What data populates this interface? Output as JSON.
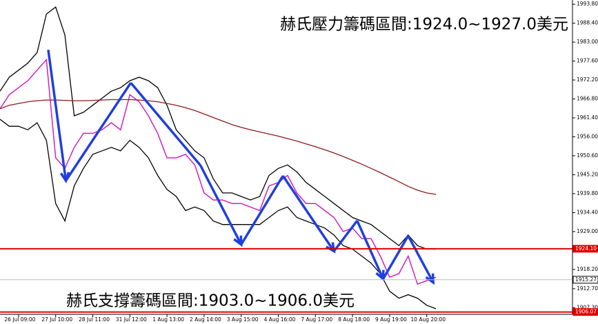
{
  "chart_data": {
    "type": "line",
    "categories": [
      null,
      null,
      "26 Jul 09:00",
      null,
      null,
      null,
      "27 Jul 10:00",
      null,
      null,
      null,
      "28 Jul 11:00",
      null,
      null,
      null,
      "31 Jul 12:00",
      null,
      null,
      null,
      "1 Aug 13:00",
      null,
      null,
      null,
      "2 Aug 14:00",
      null,
      null,
      null,
      "3 Aug 15:00",
      null,
      null,
      null,
      "4 Aug 16:00",
      null,
      null,
      null,
      "7 Aug 17:00",
      null,
      null,
      null,
      "8 Aug 18:00",
      null,
      null,
      null,
      "9 Aug 19:00",
      null,
      null,
      null,
      "10 Aug 20:00",
      null
    ],
    "series": [
      {
        "color": "#d020c0",
        "values": [
          1964,
          1968,
          1970,
          1972,
          1975,
          1978,
          1950,
          1947,
          1953,
          1957,
          1957,
          1958,
          1960,
          1958,
          1968,
          1966,
          1962,
          1957,
          1950,
          1950,
          1951,
          1948,
          1940,
          1938,
          1938,
          1937,
          1937,
          1936,
          1935,
          1942,
          1943,
          1945,
          1940,
          1937,
          1937,
          1935,
          1933,
          1929,
          1930,
          1927,
          1927,
          1922,
          1916,
          1917,
          1922,
          1914,
          1915,
          1916
        ]
      },
      {
        "color": "#000000",
        "values": [
          1969,
          1973,
          1975,
          1977,
          1980,
          1991,
          1993,
          1985,
          1962,
          1963,
          1965,
          1967,
          1969,
          1970,
          1972,
          1973,
          1972,
          1970,
          1965,
          1958,
          1955,
          1952,
          1950,
          1944,
          1940,
          1940,
          1939,
          1938,
          1939,
          1945,
          1947,
          1948,
          1946,
          1943,
          1941,
          1939,
          1937,
          1935,
          1933,
          1932,
          1931,
          1929,
          1927,
          1925,
          1928,
          1925,
          1924,
          1924
        ]
      },
      {
        "color": "#000000",
        "values": [
          1961,
          1959,
          1959,
          1958,
          1960,
          1955,
          1937,
          1932,
          1942,
          1947,
          1951,
          1952,
          1953,
          1952,
          1955,
          1953,
          1950,
          1945,
          1941,
          1939,
          1935,
          1936,
          1935,
          1932,
          1931,
          1931,
          1931,
          1931,
          1931,
          1933,
          1935,
          1936,
          1933,
          1932,
          1931,
          1930,
          1928,
          1925,
          1924,
          1922,
          1920,
          1917,
          1912,
          1910,
          1911,
          1910,
          1908,
          1907
        ]
      },
      {
        "color": "#8b1a1a",
        "values": [
          1964,
          1965,
          1965.5,
          1966,
          1966.3,
          1966.5,
          1966.5,
          1966.4,
          1966.3,
          1966.3,
          1966.4,
          1966.5,
          1966.6,
          1966.6,
          1966.6,
          1966.5,
          1966.3,
          1966,
          1965.5,
          1965,
          1964.3,
          1963.5,
          1962.5,
          1961.5,
          1960.5,
          1959.5,
          1958.7,
          1958,
          1957.4,
          1956.8,
          1956.2,
          1955.5,
          1954.8,
          1954,
          1953.2,
          1952.3,
          1951.4,
          1950.4,
          1949.3,
          1948.2,
          1947,
          1945.8,
          1944.5,
          1943.2,
          1941.9,
          1940.8,
          1940,
          1939.6
        ]
      }
    ],
    "arrows": {
      "color": "#1f3fdd",
      "x": [
        5.2,
        7.1,
        14.1,
        21.6,
        26,
        30.5,
        36,
        38.5,
        41.3,
        44,
        46.7
      ],
      "values": [
        1980.8,
        1943.5,
        1971.4,
        1947.9,
        1925.3,
        1944.9,
        1923.4,
        1932.1,
        1915.5,
        1927.8,
        1914.5
      ]
    },
    "hlines": [
      {
        "value": 1924.1,
        "label": "1924.10",
        "color": "#e00000"
      },
      {
        "value": 1915.27,
        "label": "1915.27",
        "color": "#bbbbbb"
      },
      {
        "value": 1906.07,
        "label": "1906.07",
        "color": "#e00000"
      }
    ],
    "ylim": [
      1905.6,
      1995.0
    ],
    "yticks": [
      {
        "value": 1993.8,
        "label": "1993.80"
      },
      {
        "value": 1988.4,
        "label": "1988.40"
      },
      {
        "value": 1983,
        "label": "1983.00"
      },
      {
        "value": 1977.6,
        "label": "1977.60"
      },
      {
        "value": 1972.2,
        "label": "1972.20"
      },
      {
        "value": 1966.8,
        "label": "1966.80"
      },
      {
        "value": 1961.4,
        "label": "1961.40"
      },
      {
        "value": 1956,
        "label": "1956.00"
      },
      {
        "value": 1950.6,
        "label": "1950.60"
      },
      {
        "value": 1945.2,
        "label": "1945.20"
      },
      {
        "value": 1939.8,
        "label": "1939.80"
      },
      {
        "value": 1934.4,
        "label": "1934.40"
      },
      {
        "value": 1929,
        "label": "1929.00"
      },
      {
        "value": 1918.2,
        "label": "1918.20"
      },
      {
        "value": 1912.7,
        "label": "1912.70"
      },
      {
        "value": 1907.3,
        "label": "1907.30"
      }
    ],
    "annotations": [
      "赫氏壓力籌碼區間:1924.0~1927.0美元",
      "赫氏支撐籌碼區間:1903.0~1906.0美元"
    ]
  }
}
